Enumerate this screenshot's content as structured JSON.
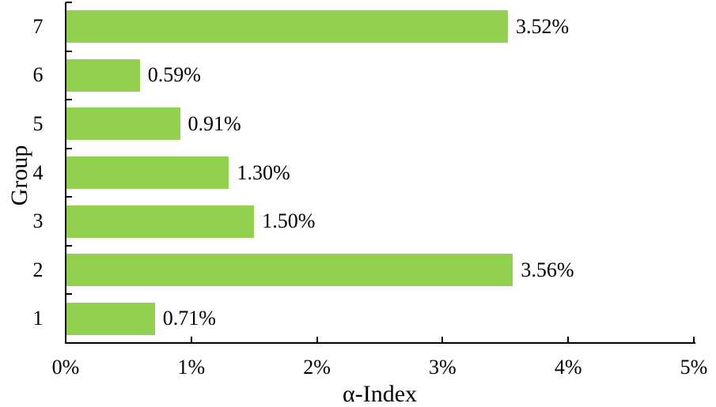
{
  "figure": {
    "background": "#ffffff"
  },
  "chart_data": {
    "type": "bar",
    "orientation": "horizontal",
    "title": "",
    "xlabel": "α-Index",
    "ylabel": "Group",
    "categories_top_to_bottom": [
      "7",
      "6",
      "5",
      "4",
      "3",
      "2",
      "1"
    ],
    "values_top_to_bottom": [
      3.52,
      0.59,
      0.91,
      1.3,
      1.5,
      3.56,
      0.71
    ],
    "value_labels_top_to_bottom": [
      "3.52%",
      "0.59%",
      "0.91%",
      "1.30%",
      "1.50%",
      "3.56%",
      "0.71%"
    ],
    "x_ticks": [
      {
        "value": 0,
        "label": "0%"
      },
      {
        "value": 1,
        "label": "1%"
      },
      {
        "value": 2,
        "label": "2%"
      },
      {
        "value": 3,
        "label": "3%"
      },
      {
        "value": 4,
        "label": "4%"
      },
      {
        "value": 5,
        "label": "5%"
      }
    ],
    "xlim": [
      0,
      5
    ],
    "grid": false,
    "legend": null,
    "bar_color": "#92D050",
    "axis_color": "#000000",
    "text_color": "#000000"
  }
}
